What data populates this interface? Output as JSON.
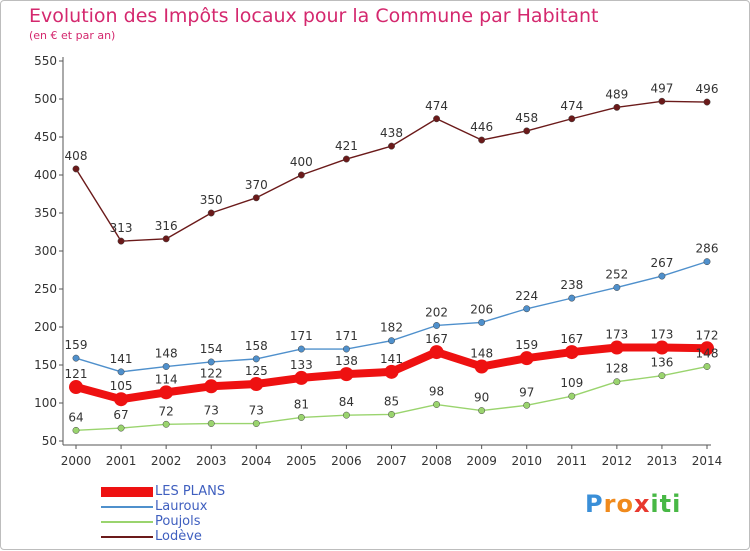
{
  "header": {
    "title": "Evolution des Impôts locaux pour la Commune par Habitant",
    "subtitle": "(en € et par an)"
  },
  "colors": {
    "title": "#d4286e",
    "legend_text": "#3f5fbf",
    "axis": "#555555",
    "grid": "#eeeeee"
  },
  "chart_data": {
    "type": "line",
    "title": "Evolution des Impôts locaux pour la Commune par Habitant",
    "subtitle": "(en € et par an)",
    "xlabel": "",
    "ylabel": "",
    "x": [
      "2000",
      "2001",
      "2002",
      "2003",
      "2004",
      "2005",
      "2006",
      "2007",
      "2008",
      "2009",
      "2010",
      "2011",
      "2012",
      "2013",
      "2014"
    ],
    "ylim": [
      50,
      550
    ],
    "yticks": [
      50,
      100,
      150,
      200,
      250,
      300,
      350,
      400,
      450,
      500,
      550
    ],
    "grid": false,
    "legend_position": "bottom-left",
    "series": [
      {
        "name": "LES PLANS",
        "color": "#ee1111",
        "values": [
          121,
          105,
          114,
          122,
          125,
          133,
          138,
          141,
          167,
          148,
          159,
          167,
          173,
          173,
          172
        ]
      },
      {
        "name": "Lauroux",
        "color": "#4f90cc",
        "values": [
          159,
          141,
          148,
          154,
          158,
          171,
          171,
          182,
          202,
          206,
          224,
          238,
          252,
          267,
          286
        ]
      },
      {
        "name": "Poujols",
        "color": "#9ad46e",
        "values": [
          64,
          67,
          72,
          73,
          73,
          81,
          84,
          85,
          98,
          90,
          97,
          109,
          128,
          136,
          148
        ]
      },
      {
        "name": "Lodève",
        "color": "#6b1a1a",
        "values": [
          408,
          313,
          316,
          350,
          370,
          400,
          421,
          438,
          474,
          446,
          458,
          474,
          489,
          497,
          496
        ]
      }
    ]
  },
  "logo": {
    "letters": [
      "P",
      "r",
      "o",
      "x",
      "i",
      "t",
      "i"
    ],
    "colors": [
      "#3a8fd8",
      "#f08a1c",
      "#f08a1c",
      "#e8382e",
      "#48b845",
      "#48b845",
      "#48b845"
    ]
  }
}
